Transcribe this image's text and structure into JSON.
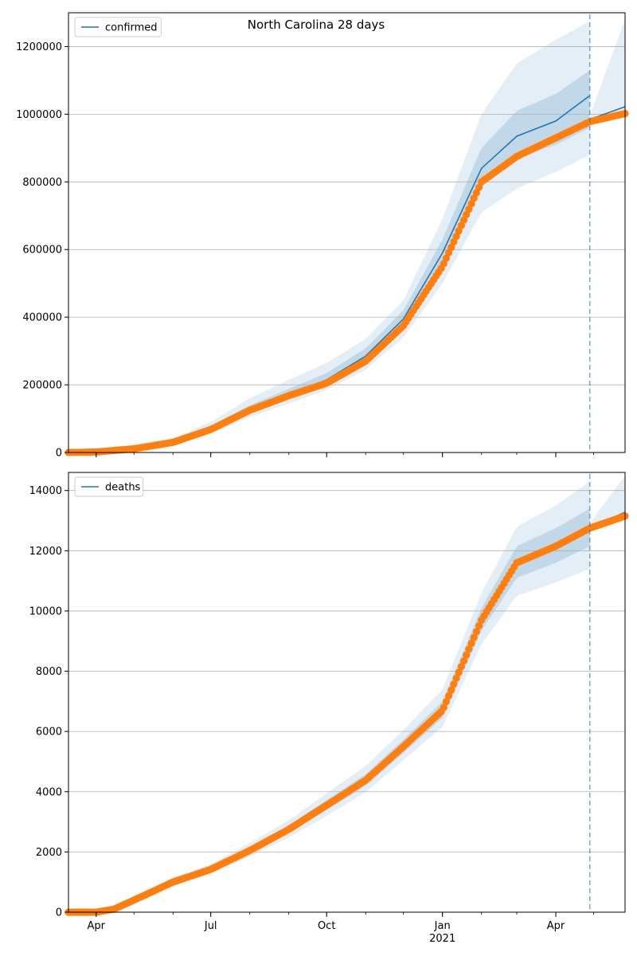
{
  "figure": {
    "suptitle": "North Carolina 28 days",
    "colors": {
      "fit_line": "#1f77b4",
      "band": "#1f77b4",
      "observed": "#ff7f0e",
      "forecast_marker": "#1f77b4",
      "grid": "#b0b0b0"
    }
  },
  "chart_data": [
    {
      "type": "line",
      "title": "North Carolina 28 days",
      "legend": {
        "entries": [
          "confirmed"
        ],
        "placement": "upper-left"
      },
      "grid": "horizontal",
      "xlim": [
        "2020-03-10",
        "2021-05-26"
      ],
      "ylim": [
        0,
        1300000
      ],
      "xlabel": "",
      "ylabel": "",
      "x_ticks": [
        {
          "date": "2020-04-01",
          "label": "Apr"
        },
        {
          "date": "2020-07-01",
          "label": "Jul"
        },
        {
          "date": "2020-10-01",
          "label": "Oct"
        },
        {
          "date": "2021-01-01",
          "label": "Jan",
          "year_label": "2021"
        },
        {
          "date": "2021-04-01",
          "label": "Apr"
        }
      ],
      "y_ticks": [
        0,
        200000,
        400000,
        600000,
        800000,
        1000000,
        1200000
      ],
      "forecast_start": "2021-04-28",
      "series": [
        {
          "name": "confirmed",
          "kind": "line",
          "points": [
            [
              "2020-03-10",
              0
            ],
            [
              "2020-04-01",
              1500
            ],
            [
              "2020-05-01",
              12000
            ],
            [
              "2020-06-01",
              32000
            ],
            [
              "2020-07-01",
              70000
            ],
            [
              "2020-08-01",
              127000
            ],
            [
              "2020-09-01",
              170000
            ],
            [
              "2020-10-01",
              215000
            ],
            [
              "2020-11-01",
              285000
            ],
            [
              "2020-12-01",
              395000
            ],
            [
              "2021-01-01",
              590000
            ],
            [
              "2021-02-01",
              840000
            ],
            [
              "2021-03-01",
              935000
            ],
            [
              "2021-04-01",
              980000
            ],
            [
              "2021-04-28",
              1055000
            ]
          ]
        },
        {
          "name": "",
          "kind": "forecast-line",
          "points": [
            [
              "2021-04-28",
              985000
            ],
            [
              "2021-05-26",
              1022000
            ]
          ]
        },
        {
          "name": "",
          "kind": "band-outer",
          "lower": [
            [
              "2020-03-10",
              0
            ],
            [
              "2020-04-01",
              1000
            ],
            [
              "2020-05-01",
              9000
            ],
            [
              "2020-06-01",
              26000
            ],
            [
              "2020-07-01",
              58000
            ],
            [
              "2020-08-01",
              105000
            ],
            [
              "2020-09-01",
              145000
            ],
            [
              "2020-10-01",
              185000
            ],
            [
              "2020-11-01",
              245000
            ],
            [
              "2020-12-01",
              340000
            ],
            [
              "2021-01-01",
              500000
            ],
            [
              "2021-02-01",
              710000
            ],
            [
              "2021-03-01",
              780000
            ],
            [
              "2021-04-01",
              830000
            ],
            [
              "2021-04-28",
              880000
            ]
          ],
          "upper": [
            [
              "2020-03-10",
              0
            ],
            [
              "2020-04-01",
              2000
            ],
            [
              "2020-05-01",
              16000
            ],
            [
              "2020-06-01",
              42000
            ],
            [
              "2020-07-01",
              90000
            ],
            [
              "2020-08-01",
              160000
            ],
            [
              "2020-09-01",
              215000
            ],
            [
              "2020-10-01",
              265000
            ],
            [
              "2020-11-01",
              335000
            ],
            [
              "2020-12-01",
              450000
            ],
            [
              "2021-01-01",
              690000
            ],
            [
              "2021-02-01",
              1000000
            ],
            [
              "2021-03-01",
              1150000
            ],
            [
              "2021-04-01",
              1220000
            ],
            [
              "2021-04-28",
              1275000
            ]
          ]
        },
        {
          "name": "",
          "kind": "band-inner",
          "lower": [
            [
              "2020-03-10",
              0
            ],
            [
              "2020-04-01",
              1300
            ],
            [
              "2020-05-01",
              11000
            ],
            [
              "2020-06-01",
              30000
            ],
            [
              "2020-07-01",
              65000
            ],
            [
              "2020-08-01",
              118000
            ],
            [
              "2020-09-01",
              160000
            ],
            [
              "2020-10-01",
              203000
            ],
            [
              "2020-11-01",
              268000
            ],
            [
              "2020-12-01",
              372000
            ],
            [
              "2021-01-01",
              555000
            ],
            [
              "2021-02-01",
              790000
            ],
            [
              "2021-03-01",
              870000
            ],
            [
              "2021-04-01",
              910000
            ],
            [
              "2021-04-28",
              960000
            ]
          ],
          "upper": [
            [
              "2020-03-10",
              0
            ],
            [
              "2020-04-01",
              1700
            ],
            [
              "2020-05-01",
              13500
            ],
            [
              "2020-06-01",
              36000
            ],
            [
              "2020-07-01",
              78000
            ],
            [
              "2020-08-01",
              140000
            ],
            [
              "2020-09-01",
              188000
            ],
            [
              "2020-10-01",
              235000
            ],
            [
              "2020-11-01",
              308000
            ],
            [
              "2020-12-01",
              420000
            ],
            [
              "2021-01-01",
              630000
            ],
            [
              "2021-02-01",
              900000
            ],
            [
              "2021-03-01",
              1010000
            ],
            [
              "2021-04-01",
              1060000
            ],
            [
              "2021-04-28",
              1130000
            ]
          ]
        },
        {
          "name": "",
          "kind": "band-forecast",
          "lower": [
            [
              "2021-04-28",
              975000
            ],
            [
              "2021-05-26",
              995000
            ]
          ],
          "upper": [
            [
              "2021-04-28",
              995000
            ],
            [
              "2021-05-26",
              1280000
            ]
          ]
        },
        {
          "name": "",
          "kind": "observed",
          "points": [
            [
              "2020-03-10",
              0
            ],
            [
              "2020-04-01",
              1500
            ],
            [
              "2020-05-01",
              11000
            ],
            [
              "2020-06-01",
              30000
            ],
            [
              "2020-07-01",
              68000
            ],
            [
              "2020-08-01",
              125000
            ],
            [
              "2020-09-01",
              168000
            ],
            [
              "2020-10-01",
              205000
            ],
            [
              "2020-11-01",
              270000
            ],
            [
              "2020-12-01",
              375000
            ],
            [
              "2021-01-01",
              550000
            ],
            [
              "2021-02-01",
              800000
            ],
            [
              "2021-03-01",
              875000
            ],
            [
              "2021-04-01",
              930000
            ],
            [
              "2021-04-28",
              978000
            ],
            [
              "2021-05-26",
              1002000
            ]
          ]
        }
      ]
    },
    {
      "type": "line",
      "title": "",
      "legend": {
        "entries": [
          "deaths"
        ],
        "placement": "upper-left"
      },
      "grid": "horizontal",
      "xlim": [
        "2020-03-10",
        "2021-05-26"
      ],
      "ylim": [
        0,
        14600
      ],
      "xlabel": "",
      "ylabel": "",
      "x_ticks": [
        {
          "date": "2020-04-01",
          "label": "Apr"
        },
        {
          "date": "2020-07-01",
          "label": "Jul"
        },
        {
          "date": "2020-10-01",
          "label": "Oct"
        },
        {
          "date": "2021-01-01",
          "label": "Jan",
          "year_label": "2021"
        },
        {
          "date": "2021-04-01",
          "label": "Apr"
        }
      ],
      "y_ticks": [
        0,
        2000,
        4000,
        6000,
        8000,
        10000,
        12000,
        14000
      ],
      "forecast_start": "2021-04-28",
      "series": [
        {
          "name": "deaths",
          "kind": "line",
          "points": [
            [
              "2020-03-10",
              0
            ],
            [
              "2020-04-01",
              0
            ],
            [
              "2020-04-15",
              100
            ],
            [
              "2020-05-01",
              400
            ],
            [
              "2020-06-01",
              1000
            ],
            [
              "2020-07-01",
              1420
            ],
            [
              "2020-08-01",
              2050
            ],
            [
              "2020-09-01",
              2750
            ],
            [
              "2020-10-01",
              3550
            ],
            [
              "2020-11-01",
              4380
            ],
            [
              "2020-12-01",
              5500
            ],
            [
              "2021-01-01",
              6700
            ],
            [
              "2021-02-01",
              9700
            ],
            [
              "2021-03-01",
              11600
            ],
            [
              "2021-04-01",
              12150
            ],
            [
              "2021-04-28",
              12750
            ]
          ]
        },
        {
          "name": "",
          "kind": "forecast-line",
          "points": [
            [
              "2021-04-28",
              12750
            ],
            [
              "2021-05-26",
              13280
            ]
          ]
        },
        {
          "name": "",
          "kind": "band-outer",
          "lower": [
            [
              "2020-03-10",
              0
            ],
            [
              "2020-04-01",
              0
            ],
            [
              "2020-04-15",
              80
            ],
            [
              "2020-05-01",
              320
            ],
            [
              "2020-06-01",
              880
            ],
            [
              "2020-07-01",
              1300
            ],
            [
              "2020-08-01",
              1850
            ],
            [
              "2020-09-01",
              2480
            ],
            [
              "2020-10-01",
              3200
            ],
            [
              "2020-11-01",
              3980
            ],
            [
              "2020-12-01",
              5050
            ],
            [
              "2021-01-01",
              6150
            ],
            [
              "2021-02-01",
              8900
            ],
            [
              "2021-03-01",
              10500
            ],
            [
              "2021-04-01",
              10950
            ],
            [
              "2021-04-28",
              11400
            ]
          ],
          "upper": [
            [
              "2020-03-10",
              0
            ],
            [
              "2020-04-01",
              0
            ],
            [
              "2020-04-15",
              130
            ],
            [
              "2020-05-01",
              480
            ],
            [
              "2020-06-01",
              1150
            ],
            [
              "2020-07-01",
              1600
            ],
            [
              "2020-08-01",
              2300
            ],
            [
              "2020-09-01",
              3050
            ],
            [
              "2020-10-01",
              3950
            ],
            [
              "2020-11-01",
              4850
            ],
            [
              "2020-12-01",
              6050
            ],
            [
              "2021-01-01",
              7400
            ],
            [
              "2021-02-01",
              10600
            ],
            [
              "2021-03-01",
              12800
            ],
            [
              "2021-04-01",
              13500
            ],
            [
              "2021-04-28",
              14300
            ]
          ]
        },
        {
          "name": "",
          "kind": "band-inner",
          "lower": [
            [
              "2020-03-10",
              0
            ],
            [
              "2020-04-01",
              0
            ],
            [
              "2020-04-15",
              90
            ],
            [
              "2020-05-01",
              370
            ],
            [
              "2020-06-01",
              950
            ],
            [
              "2020-07-01",
              1370
            ],
            [
              "2020-08-01",
              1960
            ],
            [
              "2020-09-01",
              2630
            ],
            [
              "2020-10-01",
              3390
            ],
            [
              "2020-11-01",
              4200
            ],
            [
              "2020-12-01",
              5290
            ],
            [
              "2021-01-01",
              6450
            ],
            [
              "2021-02-01",
              9350
            ],
            [
              "2021-03-01",
              11100
            ],
            [
              "2021-04-01",
              11600
            ],
            [
              "2021-04-28",
              12150
            ]
          ],
          "upper": [
            [
              "2020-03-10",
              0
            ],
            [
              "2020-04-01",
              0
            ],
            [
              "2020-04-15",
              110
            ],
            [
              "2020-05-01",
              430
            ],
            [
              "2020-06-01",
              1060
            ],
            [
              "2020-07-01",
              1490
            ],
            [
              "2020-08-01",
              2160
            ],
            [
              "2020-09-01",
              2880
            ],
            [
              "2020-10-01",
              3720
            ],
            [
              "2020-11-01",
              4580
            ],
            [
              "2020-12-01",
              5730
            ],
            [
              "2021-01-01",
              7000
            ],
            [
              "2021-02-01",
              10100
            ],
            [
              "2021-03-01",
              12150
            ],
            [
              "2021-04-01",
              12750
            ],
            [
              "2021-04-28",
              13400
            ]
          ]
        },
        {
          "name": "",
          "kind": "band-forecast",
          "lower": [
            [
              "2021-04-28",
              12650
            ],
            [
              "2021-05-26",
              13050
            ]
          ],
          "upper": [
            [
              "2021-04-28",
              12900
            ],
            [
              "2021-05-26",
              14500
            ]
          ]
        },
        {
          "name": "",
          "kind": "observed",
          "points": [
            [
              "2020-03-10",
              0
            ],
            [
              "2020-04-01",
              0
            ],
            [
              "2020-04-15",
              100
            ],
            [
              "2020-05-01",
              400
            ],
            [
              "2020-06-01",
              1000
            ],
            [
              "2020-07-01",
              1420
            ],
            [
              "2020-08-01",
              2050
            ],
            [
              "2020-09-01",
              2750
            ],
            [
              "2020-10-01",
              3550
            ],
            [
              "2020-11-01",
              4380
            ],
            [
              "2020-12-01",
              5500
            ],
            [
              "2021-01-01",
              6700
            ],
            [
              "2021-02-01",
              9700
            ],
            [
              "2021-03-01",
              11600
            ],
            [
              "2021-04-01",
              12150
            ],
            [
              "2021-04-28",
              12750
            ],
            [
              "2021-05-26",
              13150
            ]
          ]
        }
      ]
    }
  ]
}
